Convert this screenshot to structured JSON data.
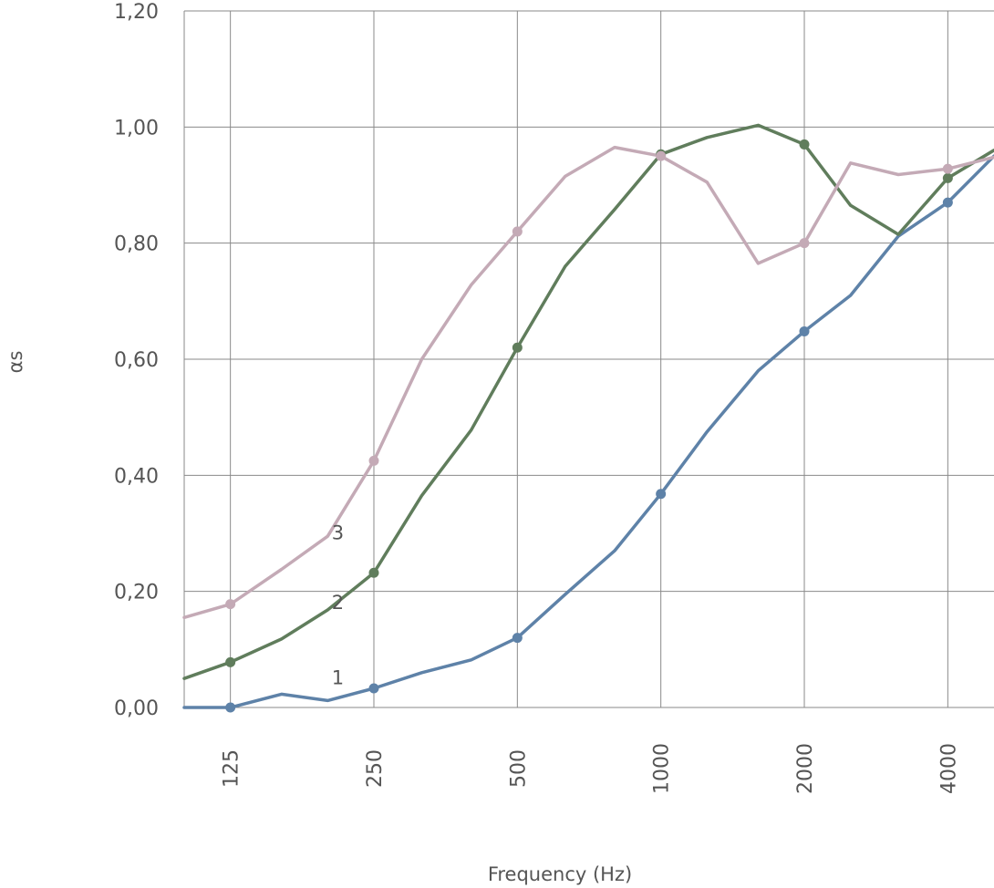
{
  "chart_data": {
    "type": "line",
    "title": "",
    "xlabel": "Frequency (Hz)",
    "ylabel": "αs",
    "x_scale": "log",
    "xlim": [
      100,
      5000
    ],
    "ylim": [
      0,
      1.2
    ],
    "grid": true,
    "x_ticks": [
      {
        "value": 125,
        "label": "125"
      },
      {
        "value": 250,
        "label": "250"
      },
      {
        "value": 500,
        "label": "500"
      },
      {
        "value": 1000,
        "label": "1000"
      },
      {
        "value": 2000,
        "label": "2000"
      },
      {
        "value": 4000,
        "label": "4000"
      }
    ],
    "y_ticks": [
      {
        "value": 0.0,
        "label": "0,00"
      },
      {
        "value": 0.2,
        "label": "0,20"
      },
      {
        "value": 0.4,
        "label": "0,40"
      },
      {
        "value": 0.6,
        "label": "0,60"
      },
      {
        "value": 0.8,
        "label": "0,80"
      },
      {
        "value": 1.0,
        "label": "1,00"
      },
      {
        "value": 1.2,
        "label": "1,20"
      }
    ],
    "x": [
      100,
      125,
      160,
      200,
      250,
      315,
      400,
      500,
      630,
      800,
      1000,
      1250,
      1600,
      2000,
      2500,
      3150,
      4000,
      5000
    ],
    "series": [
      {
        "name": "1",
        "label_at": {
          "x": 210,
          "y": 0.04
        },
        "color": "#5e82a8",
        "values": [
          0.0,
          0.0,
          0.023,
          0.012,
          0.033,
          0.06,
          0.082,
          0.12,
          0.195,
          0.27,
          0.368,
          0.475,
          0.58,
          0.648,
          0.71,
          0.812,
          0.87,
          0.95
        ],
        "markers": [
          125,
          250,
          500,
          1000,
          2000,
          4000
        ]
      },
      {
        "name": "2",
        "label_at": {
          "x": 210,
          "y": 0.17
        },
        "color": "#607d5c",
        "values": [
          0.05,
          0.078,
          0.118,
          0.168,
          0.232,
          0.365,
          0.478,
          0.62,
          0.76,
          0.858,
          0.953,
          0.982,
          1.003,
          0.97,
          0.865,
          0.815,
          0.912,
          0.96
        ],
        "markers": [
          125,
          250,
          500,
          1000,
          2000,
          4000
        ]
      },
      {
        "name": "3",
        "label_at": {
          "x": 210,
          "y": 0.29
        },
        "color": "#c4aab6",
        "values": [
          0.155,
          0.178,
          0.238,
          0.295,
          0.425,
          0.6,
          0.728,
          0.82,
          0.915,
          0.965,
          0.95,
          0.905,
          0.765,
          0.8,
          0.938,
          0.918,
          0.928,
          0.948
        ],
        "markers": [
          125,
          250,
          500,
          1000,
          2000,
          4000
        ]
      }
    ]
  }
}
